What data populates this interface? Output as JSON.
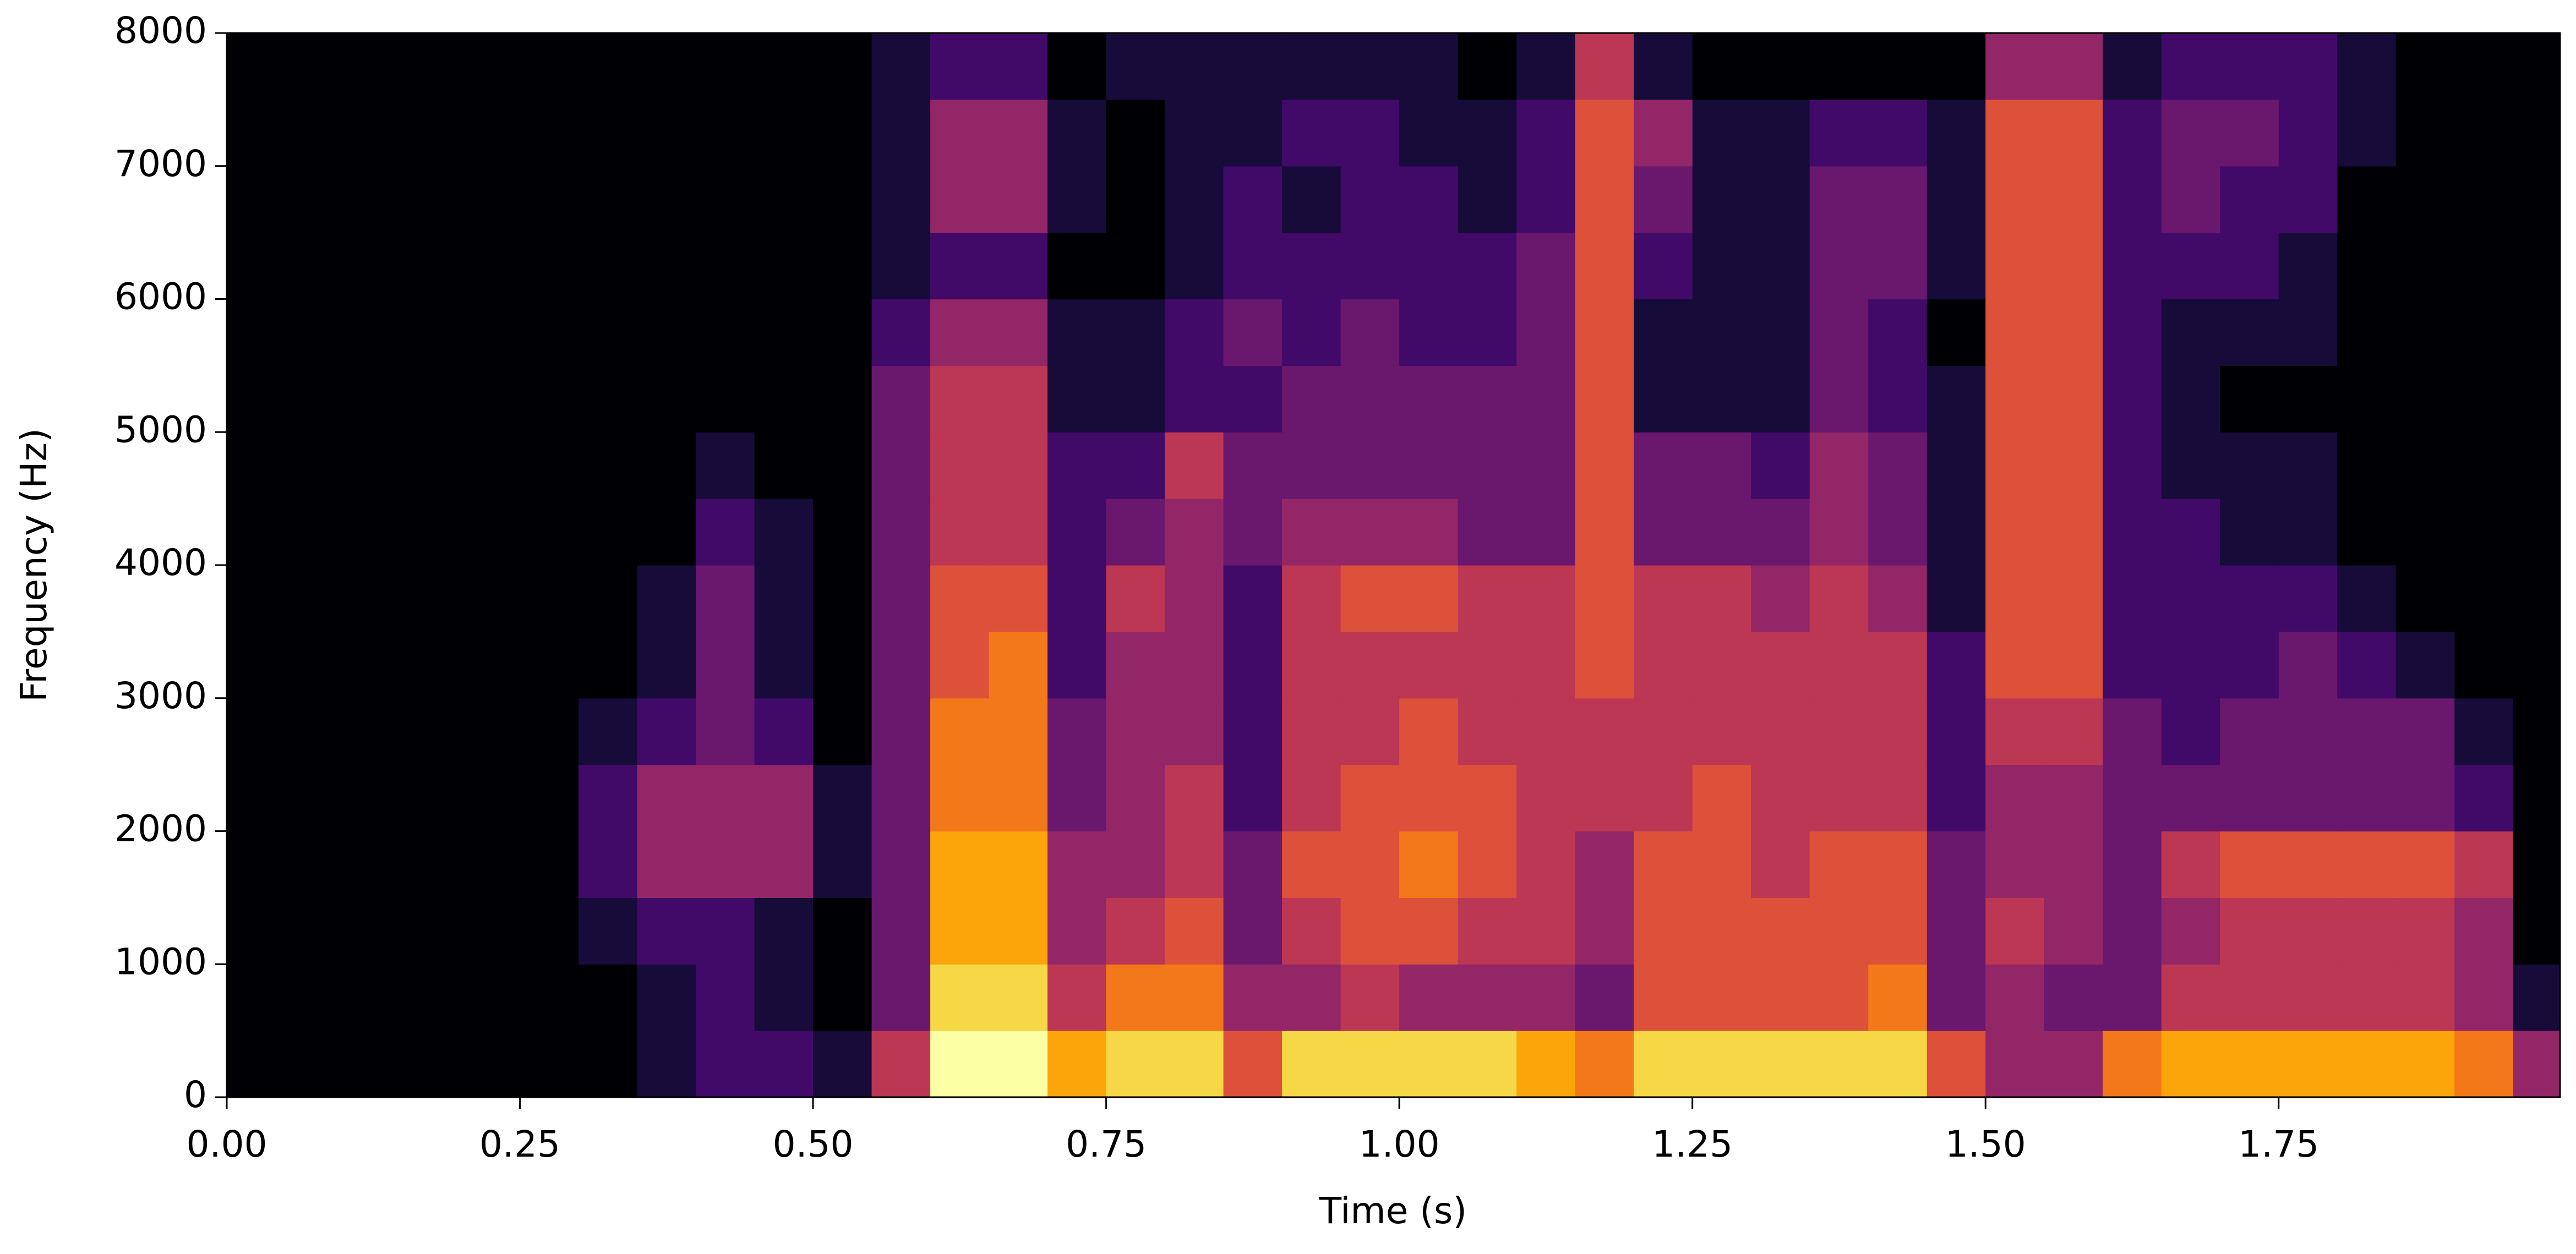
{
  "chart_data": {
    "type": "heatmap",
    "colormap": "inferno",
    "x_label": "Time (s)",
    "y_label": "Frequency (Hz)",
    "xlim": [
      0,
      1.99
    ],
    "ylim": [
      0,
      8000
    ],
    "xticks": [
      {
        "value": 0,
        "label": "0.00"
      },
      {
        "value": 0.25,
        "label": "0.25"
      },
      {
        "value": 0.5,
        "label": "0.50"
      },
      {
        "value": 0.75,
        "label": "0.75"
      },
      {
        "value": 1,
        "label": "1.00"
      },
      {
        "value": 1.25,
        "label": "1.25"
      },
      {
        "value": 1.5,
        "label": "1.50"
      },
      {
        "value": 1.75,
        "label": "1.75"
      }
    ],
    "yticks": [
      0,
      1000,
      2000,
      3000,
      4000,
      5000,
      6000,
      7000,
      8000
    ],
    "x": [
      0,
      0.05,
      0.1,
      0.15,
      0.2,
      0.25,
      0.3,
      0.35,
      0.4,
      0.45,
      0.5,
      0.55,
      0.6,
      0.65,
      0.7,
      0.75,
      0.8,
      0.85,
      0.9,
      0.95,
      1,
      1.05,
      1.1,
      1.15,
      1.2,
      1.25,
      1.3,
      1.35,
      1.4,
      1.45,
      1.5,
      1.55,
      1.6,
      1.65,
      1.7,
      1.75,
      1.8,
      1.85,
      1.9,
      1.95
    ],
    "y": [
      0,
      500,
      1000,
      1500,
      2000,
      2500,
      3000,
      3500,
      4000,
      4500,
      5000,
      5500,
      6000,
      6500,
      7000,
      7500
    ],
    "z": [
      [
        0,
        0,
        0,
        0,
        0,
        0,
        0,
        1,
        2,
        2,
        1,
        5,
        10,
        10,
        8,
        9,
        9,
        6,
        9,
        9,
        9,
        9,
        8,
        7,
        9,
        9,
        9,
        9,
        9,
        6,
        4,
        4,
        7,
        8,
        8,
        8,
        8,
        8,
        7,
        4
      ],
      [
        0,
        0,
        0,
        0,
        0,
        0,
        0,
        1,
        2,
        1,
        0,
        3,
        9,
        9,
        5,
        7,
        7,
        4,
        4,
        5,
        4,
        4,
        4,
        3,
        6,
        6,
        6,
        6,
        7,
        3,
        4,
        3,
        3,
        5,
        5,
        5,
        5,
        5,
        4,
        1
      ],
      [
        0,
        0,
        0,
        0,
        0,
        0,
        1,
        2,
        2,
        1,
        0,
        3,
        8,
        8,
        4,
        5,
        6,
        3,
        5,
        6,
        6,
        5,
        5,
        4,
        6,
        6,
        6,
        6,
        6,
        3,
        5,
        4,
        3,
        4,
        5,
        5,
        5,
        5,
        4,
        0
      ],
      [
        0,
        0,
        0,
        0,
        0,
        0,
        2,
        4,
        4,
        4,
        1,
        3,
        8,
        8,
        4,
        4,
        5,
        3,
        6,
        6,
        7,
        6,
        5,
        4,
        6,
        6,
        5,
        6,
        6,
        3,
        4,
        4,
        3,
        5,
        6,
        6,
        6,
        6,
        5,
        0
      ],
      [
        0,
        0,
        0,
        0,
        0,
        0,
        2,
        4,
        4,
        4,
        1,
        3,
        7,
        7,
        3,
        4,
        5,
        2,
        5,
        6,
        6,
        6,
        5,
        5,
        5,
        6,
        5,
        5,
        5,
        2,
        4,
        4,
        3,
        3,
        3,
        3,
        3,
        3,
        2,
        0
      ],
      [
        0,
        0,
        0,
        0,
        0,
        0,
        1,
        2,
        3,
        2,
        0,
        3,
        7,
        7,
        3,
        4,
        4,
        2,
        5,
        5,
        6,
        5,
        5,
        5,
        5,
        5,
        5,
        5,
        5,
        2,
        5,
        5,
        3,
        2,
        3,
        3,
        3,
        3,
        1,
        0
      ],
      [
        0,
        0,
        0,
        0,
        0,
        0,
        0,
        1,
        3,
        1,
        0,
        3,
        6,
        7,
        2,
        4,
        4,
        2,
        5,
        5,
        5,
        5,
        5,
        6,
        5,
        5,
        5,
        5,
        5,
        2,
        6,
        6,
        2,
        2,
        2,
        3,
        2,
        1,
        0,
        0
      ],
      [
        0,
        0,
        0,
        0,
        0,
        0,
        0,
        1,
        3,
        1,
        0,
        3,
        6,
        6,
        2,
        5,
        4,
        2,
        5,
        6,
        6,
        5,
        5,
        6,
        5,
        5,
        4,
        5,
        4,
        1,
        6,
        6,
        2,
        2,
        2,
        2,
        1,
        0,
        0,
        0
      ],
      [
        0,
        0,
        0,
        0,
        0,
        0,
        0,
        0,
        2,
        1,
        0,
        3,
        5,
        5,
        2,
        3,
        4,
        3,
        4,
        4,
        4,
        3,
        3,
        6,
        3,
        3,
        3,
        4,
        3,
        1,
        6,
        6,
        2,
        2,
        1,
        1,
        0,
        0,
        0,
        0
      ],
      [
        0,
        0,
        0,
        0,
        0,
        0,
        0,
        0,
        1,
        0,
        0,
        3,
        5,
        5,
        2,
        2,
        5,
        3,
        3,
        3,
        3,
        3,
        3,
        6,
        3,
        3,
        2,
        4,
        3,
        1,
        6,
        6,
        2,
        1,
        1,
        1,
        0,
        0,
        0,
        0
      ],
      [
        0,
        0,
        0,
        0,
        0,
        0,
        0,
        0,
        0,
        0,
        0,
        3,
        5,
        5,
        1,
        1,
        2,
        2,
        3,
        3,
        3,
        3,
        3,
        6,
        1,
        1,
        1,
        3,
        2,
        1,
        6,
        6,
        2,
        1,
        0,
        0,
        0,
        0,
        0,
        0
      ],
      [
        0,
        0,
        0,
        0,
        0,
        0,
        0,
        0,
        0,
        0,
        0,
        2,
        4,
        4,
        1,
        1,
        2,
        3,
        2,
        3,
        2,
        2,
        3,
        6,
        1,
        1,
        1,
        3,
        2,
        0,
        6,
        6,
        2,
        1,
        1,
        1,
        0,
        0,
        0,
        0
      ],
      [
        0,
        0,
        0,
        0,
        0,
        0,
        0,
        0,
        0,
        0,
        0,
        1,
        2,
        2,
        0,
        0,
        1,
        2,
        2,
        2,
        2,
        2,
        3,
        6,
        2,
        1,
        1,
        3,
        3,
        1,
        6,
        6,
        2,
        2,
        2,
        1,
        0,
        0,
        0,
        0
      ],
      [
        0,
        0,
        0,
        0,
        0,
        0,
        0,
        0,
        0,
        0,
        0,
        1,
        4,
        4,
        1,
        0,
        1,
        2,
        1,
        2,
        2,
        1,
        2,
        6,
        3,
        1,
        1,
        3,
        3,
        1,
        6,
        6,
        2,
        3,
        2,
        2,
        0,
        0,
        0,
        0
      ],
      [
        0,
        0,
        0,
        0,
        0,
        0,
        0,
        0,
        0,
        0,
        0,
        1,
        4,
        4,
        1,
        0,
        1,
        1,
        2,
        2,
        1,
        1,
        2,
        6,
        4,
        1,
        1,
        2,
        2,
        1,
        6,
        6,
        2,
        3,
        3,
        2,
        1,
        0,
        0,
        0
      ],
      [
        0,
        0,
        0,
        0,
        0,
        0,
        0,
        0,
        0,
        0,
        0,
        1,
        2,
        2,
        0,
        1,
        1,
        1,
        1,
        1,
        1,
        0,
        1,
        5,
        1,
        0,
        0,
        0,
        0,
        0,
        4,
        4,
        1,
        2,
        2,
        2,
        1,
        0,
        0,
        0
      ]
    ]
  }
}
